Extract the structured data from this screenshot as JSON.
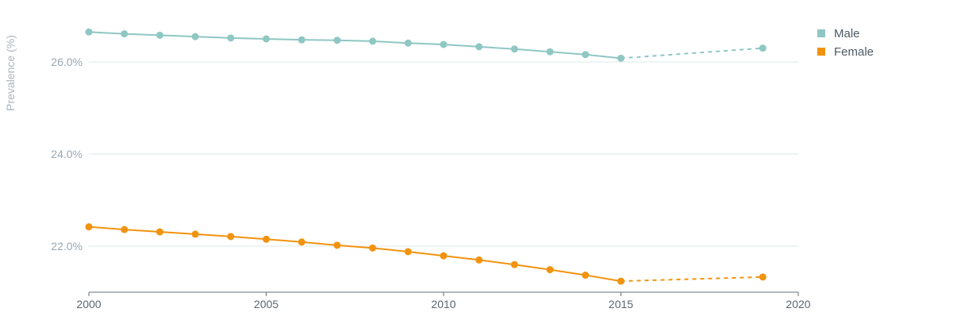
{
  "chart_data": {
    "type": "line",
    "title": "",
    "xlabel": "",
    "ylabel": "Prevalence (%)",
    "xlim": [
      2000,
      2020
    ],
    "ylim": [
      21.0,
      27.0
    ],
    "x_ticks": [
      2000,
      2005,
      2010,
      2015,
      2020
    ],
    "y_ticks": [
      22.0,
      24.0,
      26.0
    ],
    "y_tick_labels": [
      "22.0%",
      "24.0%",
      "26.0%"
    ],
    "grid": "horizontal",
    "legend_position": "top-right",
    "series": [
      {
        "name": "Male",
        "color": "#8fc7c3",
        "points": [
          {
            "x": 2000,
            "y": 26.65
          },
          {
            "x": 2001,
            "y": 26.61
          },
          {
            "x": 2002,
            "y": 26.58
          },
          {
            "x": 2003,
            "y": 26.55
          },
          {
            "x": 2004,
            "y": 26.52
          },
          {
            "x": 2005,
            "y": 26.5
          },
          {
            "x": 2006,
            "y": 26.48
          },
          {
            "x": 2007,
            "y": 26.47
          },
          {
            "x": 2008,
            "y": 26.45
          },
          {
            "x": 2009,
            "y": 26.41
          },
          {
            "x": 2010,
            "y": 26.38
          },
          {
            "x": 2011,
            "y": 26.33
          },
          {
            "x": 2012,
            "y": 26.28
          },
          {
            "x": 2013,
            "y": 26.22
          },
          {
            "x": 2014,
            "y": 26.16
          },
          {
            "x": 2015,
            "y": 26.08
          }
        ],
        "projected": [
          {
            "x": 2015,
            "y": 26.08
          },
          {
            "x": 2019,
            "y": 26.3
          }
        ]
      },
      {
        "name": "Female",
        "color": "#f2930f",
        "points": [
          {
            "x": 2000,
            "y": 22.42
          },
          {
            "x": 2001,
            "y": 22.36
          },
          {
            "x": 2002,
            "y": 22.31
          },
          {
            "x": 2003,
            "y": 22.26
          },
          {
            "x": 2004,
            "y": 22.21
          },
          {
            "x": 2005,
            "y": 22.15
          },
          {
            "x": 2006,
            "y": 22.09
          },
          {
            "x": 2007,
            "y": 22.02
          },
          {
            "x": 2008,
            "y": 21.96
          },
          {
            "x": 2009,
            "y": 21.88
          },
          {
            "x": 2010,
            "y": 21.79
          },
          {
            "x": 2011,
            "y": 21.7
          },
          {
            "x": 2012,
            "y": 21.6
          },
          {
            "x": 2013,
            "y": 21.49
          },
          {
            "x": 2014,
            "y": 21.37
          },
          {
            "x": 2015,
            "y": 21.24
          }
        ],
        "projected": [
          {
            "x": 2015,
            "y": 21.24
          },
          {
            "x": 2019,
            "y": 21.33
          }
        ]
      }
    ]
  }
}
